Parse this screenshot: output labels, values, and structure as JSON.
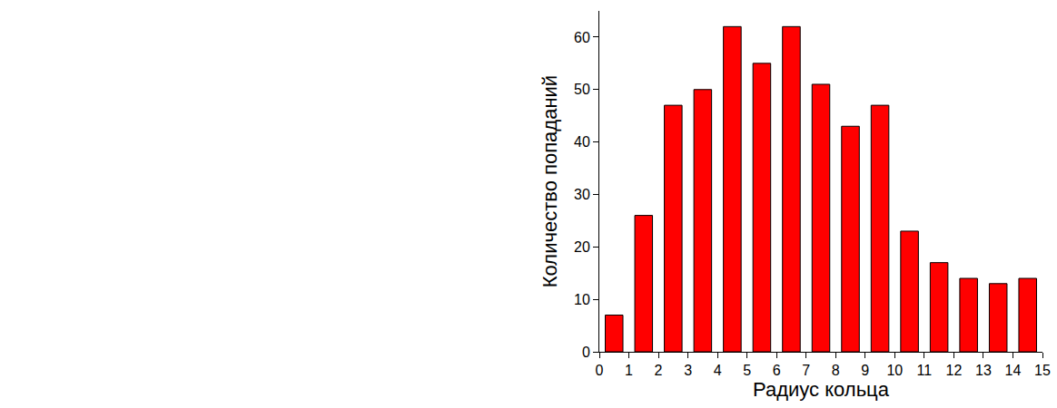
{
  "chart_data": {
    "type": "histogram",
    "x_label": "Радиус кольца",
    "y_label": "Количество попаданий",
    "bins": [
      0,
      1,
      2,
      3,
      4,
      5,
      6,
      7,
      8,
      9,
      10,
      11,
      12,
      13,
      14,
      15
    ],
    "values": [
      7,
      26,
      47,
      50,
      62,
      55,
      62,
      51,
      43,
      47,
      23,
      17,
      14,
      13,
      14
    ],
    "color": "#ff0000",
    "xlim": [
      0,
      15
    ],
    "xticks": [
      0,
      1,
      2,
      3,
      4,
      5,
      6,
      7,
      8,
      9,
      10,
      11,
      12,
      13,
      14,
      15
    ],
    "ylim": [
      0,
      65
    ],
    "yticks": [
      0,
      10,
      20,
      30,
      40,
      50,
      60
    ],
    "grid": false
  }
}
